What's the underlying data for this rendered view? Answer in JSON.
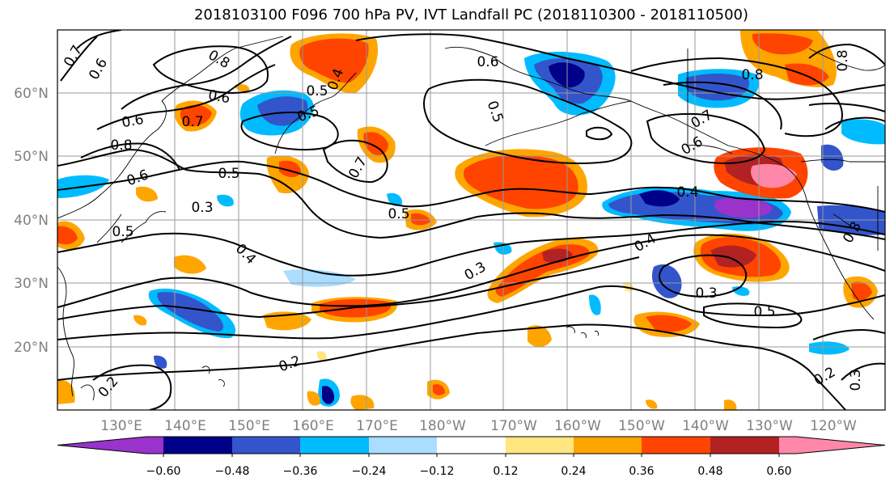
{
  "title": "2018103100 F096 700 hPa PV, IVT Landfall PC (2018110300 - 2018110500)",
  "map": {
    "lon_labels": [
      "130°E",
      "140°E",
      "150°E",
      "160°E",
      "170°E",
      "180°W",
      "170°W",
      "160°W",
      "150°W",
      "140°W",
      "130°W",
      "120°W"
    ],
    "lat_labels": [
      "60°N",
      "50°N",
      "40°N",
      "30°N",
      "20°N"
    ],
    "pv_contour_levels": [
      "0.2",
      "0.3",
      "0.4",
      "0.5",
      "0.6",
      "0.7",
      "0.8"
    ],
    "contour_labels": [
      {
        "text": "0.7"
      },
      {
        "text": "0.6"
      },
      {
        "text": "0.8"
      },
      {
        "text": "0.6"
      },
      {
        "text": "0.7"
      },
      {
        "text": "0.6"
      },
      {
        "text": "0.8"
      },
      {
        "text": "0.6"
      },
      {
        "text": "0.5"
      },
      {
        "text": "0.5"
      },
      {
        "text": "0.3"
      },
      {
        "text": "0.5"
      },
      {
        "text": "0.4"
      },
      {
        "text": "0.7"
      },
      {
        "text": "0.5"
      },
      {
        "text": "0.5"
      },
      {
        "text": "0.4"
      },
      {
        "text": "0.6"
      },
      {
        "text": "0.5"
      },
      {
        "text": "0.8"
      },
      {
        "text": "0.7"
      },
      {
        "text": "0.6"
      },
      {
        "text": "0.8"
      },
      {
        "text": "0.4"
      },
      {
        "text": "0.4"
      },
      {
        "text": "0.3"
      },
      {
        "text": "0.3"
      },
      {
        "text": "0.5"
      },
      {
        "text": "0.2"
      },
      {
        "text": "0.2"
      },
      {
        "text": "0.3"
      },
      {
        "text": "0.2"
      },
      {
        "text": "0.3"
      }
    ]
  },
  "colorbar": {
    "colors": [
      "#9933cc",
      "#000088",
      "#3355cc",
      "#00bbff",
      "#aaddff",
      "#ffffff",
      "#ffe680",
      "#ffa500",
      "#ff4400",
      "#b22222",
      "#ff88aa"
    ],
    "tick_labels": [
      "−0.60",
      "−0.48",
      "−0.36",
      "−0.24",
      "−0.12",
      "0.12",
      "0.24",
      "0.36",
      "0.48",
      "0.60"
    ]
  }
}
